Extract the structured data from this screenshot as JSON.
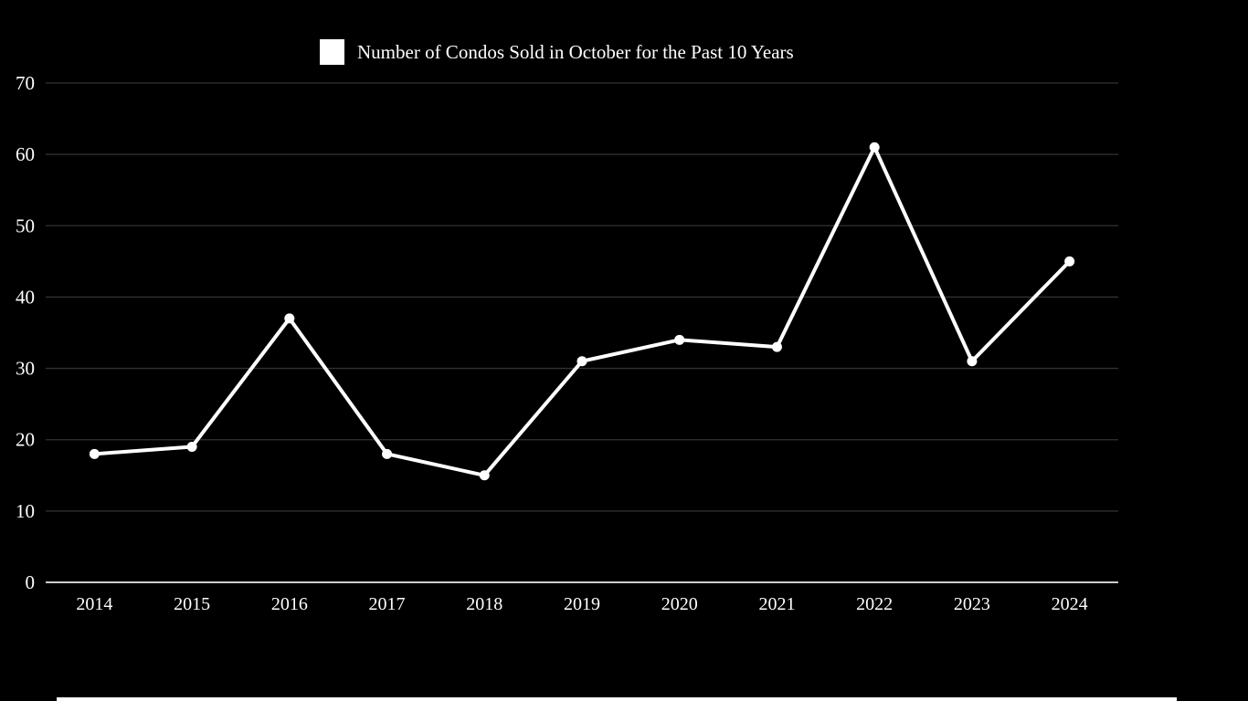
{
  "chart_data": {
    "type": "line",
    "title": "Number of Condos Sold in October for the Past 10 Years",
    "categories": [
      "2014",
      "2015",
      "2016",
      "2017",
      "2018",
      "2019",
      "2020",
      "2021",
      "2022",
      "2023",
      "2024"
    ],
    "series": [
      {
        "name": "Number of Condos Sold in October for the Past 10 Years",
        "values": [
          18,
          19,
          37,
          18,
          15,
          31,
          34,
          33,
          61,
          31,
          45
        ]
      }
    ],
    "xlabel": "",
    "ylabel": "",
    "ylim": [
      0,
      70
    ],
    "yticks": [
      0,
      10,
      20,
      30,
      40,
      50,
      60,
      70
    ],
    "grid": true,
    "legend_position": "top-center",
    "marker": "circle"
  },
  "colors": {
    "background": "#000000",
    "gridline": "#333333",
    "axis_line": "#cccccc",
    "text": "#ffffff",
    "series_line": "#ffffff",
    "marker_fill": "#ffffff",
    "bottom_strip": "#ffffff"
  }
}
